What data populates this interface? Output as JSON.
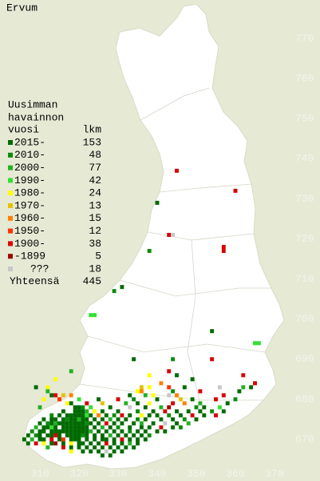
{
  "map": {
    "title": "Ervum",
    "legend": {
      "heading": [
        "Uusimman",
        "havainnon",
        "vuosi"
      ],
      "count_heading": "lkm",
      "items": [
        {
          "label": "2015-",
          "count": 153,
          "color": "#006a00"
        },
        {
          "label": "2010-",
          "count": 48,
          "color": "#0b8c0b"
        },
        {
          "label": "2000-",
          "count": 77,
          "color": "#22b022"
        },
        {
          "label": "1990-",
          "count": 42,
          "color": "#33e033"
        },
        {
          "label": "1980-",
          "count": 24,
          "color": "#ffff00"
        },
        {
          "label": "1970-",
          "count": 13,
          "color": "#e8c000"
        },
        {
          "label": "1960-",
          "count": 15,
          "color": "#ff8000"
        },
        {
          "label": "1950-",
          "count": 12,
          "color": "#ff3000"
        },
        {
          "label": "1900-",
          "count": 38,
          "color": "#d80000"
        },
        {
          "label": "-1899",
          "count": 5,
          "color": "#a00000"
        },
        {
          "label": "???",
          "count": 18,
          "color": "#c8c8c8"
        }
      ],
      "total_label": "Yhteensä",
      "total": 445
    },
    "xlim": [
      310,
      370
    ],
    "ylim": [
      670,
      770
    ],
    "xticks": [
      310,
      320,
      330,
      340,
      350,
      360,
      370
    ],
    "yticks": [
      670,
      680,
      690,
      700,
      710,
      720,
      730,
      740,
      750,
      760,
      770
    ],
    "squares": [
      [
        345,
        737,
        8
      ],
      [
        360,
        732,
        8
      ],
      [
        340,
        729,
        0
      ],
      [
        343,
        721,
        8
      ],
      [
        344,
        721,
        10
      ],
      [
        338,
        717,
        1
      ],
      [
        357,
        718,
        8
      ],
      [
        357,
        717,
        8
      ],
      [
        331,
        708,
        0
      ],
      [
        329,
        707,
        1
      ],
      [
        323,
        701,
        3
      ],
      [
        324,
        701,
        3
      ],
      [
        354,
        697,
        0
      ],
      [
        365,
        694,
        3
      ],
      [
        366,
        694,
        3
      ],
      [
        334,
        690,
        0
      ],
      [
        344,
        690,
        1
      ],
      [
        354,
        690,
        8
      ],
      [
        362,
        686,
        8
      ],
      [
        314,
        685,
        4
      ],
      [
        318,
        687,
        2
      ],
      [
        343,
        687,
        8
      ],
      [
        345,
        686,
        0
      ],
      [
        349,
        685,
        0
      ],
      [
        338,
        686,
        4
      ],
      [
        341,
        684,
        6
      ],
      [
        365,
        684,
        8
      ],
      [
        309,
        683,
        0
      ],
      [
        312,
        683,
        4
      ],
      [
        336,
        683,
        5
      ],
      [
        338,
        683,
        4
      ],
      [
        343,
        683,
        7
      ],
      [
        347,
        683,
        0
      ],
      [
        356,
        683,
        10
      ],
      [
        362,
        683,
        2
      ],
      [
        364,
        683,
        0
      ],
      [
        312,
        682,
        2
      ],
      [
        335,
        682,
        4
      ],
      [
        336,
        682,
        6
      ],
      [
        344,
        682,
        1
      ],
      [
        351,
        682,
        8
      ],
      [
        361,
        682,
        0
      ],
      [
        313,
        681,
        0
      ],
      [
        314,
        681,
        8
      ],
      [
        316,
        681,
        5
      ],
      [
        318,
        681,
        6
      ],
      [
        333,
        681,
        0
      ],
      [
        337,
        681,
        2
      ],
      [
        339,
        681,
        4
      ],
      [
        343,
        681,
        10
      ],
      [
        345,
        681,
        6
      ],
      [
        357,
        681,
        8
      ],
      [
        311,
        680,
        4
      ],
      [
        315,
        680,
        7
      ],
      [
        320,
        680,
        3
      ],
      [
        325,
        680,
        0
      ],
      [
        330,
        680,
        8
      ],
      [
        334,
        680,
        1
      ],
      [
        340,
        680,
        0
      ],
      [
        346,
        680,
        5
      ],
      [
        349,
        680,
        0
      ],
      [
        355,
        680,
        8
      ],
      [
        360,
        680,
        1
      ],
      [
        317,
        679,
        4
      ],
      [
        318,
        679,
        0
      ],
      [
        322,
        679,
        8
      ],
      [
        326,
        679,
        5
      ],
      [
        332,
        679,
        2
      ],
      [
        335,
        679,
        0
      ],
      [
        338,
        679,
        4
      ],
      [
        344,
        679,
        8
      ],
      [
        347,
        679,
        6
      ],
      [
        351,
        679,
        2
      ],
      [
        358,
        679,
        0
      ],
      [
        310,
        678,
        2
      ],
      [
        319,
        678,
        0
      ],
      [
        320,
        678,
        0
      ],
      [
        321,
        678,
        1
      ],
      [
        323,
        678,
        3
      ],
      [
        328,
        678,
        0
      ],
      [
        333,
        678,
        10
      ],
      [
        337,
        678,
        0
      ],
      [
        341,
        678,
        2
      ],
      [
        343,
        678,
        9
      ],
      [
        350,
        678,
        1
      ],
      [
        352,
        678,
        0
      ],
      [
        356,
        678,
        3
      ],
      [
        316,
        677,
        0
      ],
      [
        319,
        677,
        0
      ],
      [
        320,
        677,
        0
      ],
      [
        321,
        677,
        0
      ],
      [
        322,
        677,
        2
      ],
      [
        324,
        677,
        4
      ],
      [
        326,
        677,
        0
      ],
      [
        330,
        677,
        0
      ],
      [
        335,
        677,
        1
      ],
      [
        339,
        677,
        0
      ],
      [
        342,
        677,
        8
      ],
      [
        345,
        677,
        0
      ],
      [
        348,
        677,
        0
      ],
      [
        351,
        677,
        0
      ],
      [
        354,
        677,
        1
      ],
      [
        357,
        677,
        0
      ],
      [
        313,
        676,
        1
      ],
      [
        315,
        676,
        0
      ],
      [
        317,
        676,
        0
      ],
      [
        318,
        676,
        0
      ],
      [
        319,
        676,
        0
      ],
      [
        320,
        676,
        0
      ],
      [
        321,
        676,
        0
      ],
      [
        322,
        676,
        3
      ],
      [
        323,
        676,
        0
      ],
      [
        325,
        676,
        6
      ],
      [
        327,
        676,
        0
      ],
      [
        329,
        676,
        1
      ],
      [
        331,
        676,
        8
      ],
      [
        333,
        676,
        0
      ],
      [
        336,
        676,
        4
      ],
      [
        338,
        676,
        0
      ],
      [
        340,
        676,
        0
      ],
      [
        343,
        676,
        1
      ],
      [
        346,
        676,
        0
      ],
      [
        349,
        676,
        8
      ],
      [
        352,
        676,
        0
      ],
      [
        355,
        676,
        8
      ],
      [
        311,
        675,
        0
      ],
      [
        313,
        675,
        0
      ],
      [
        314,
        675,
        0
      ],
      [
        316,
        675,
        0
      ],
      [
        317,
        675,
        1
      ],
      [
        318,
        675,
        0
      ],
      [
        319,
        675,
        0
      ],
      [
        320,
        675,
        2
      ],
      [
        321,
        675,
        0
      ],
      [
        322,
        675,
        0
      ],
      [
        324,
        675,
        0
      ],
      [
        326,
        675,
        0
      ],
      [
        328,
        675,
        2
      ],
      [
        330,
        675,
        0
      ],
      [
        332,
        675,
        0
      ],
      [
        335,
        675,
        1
      ],
      [
        337,
        675,
        0
      ],
      [
        341,
        675,
        0
      ],
      [
        344,
        675,
        0
      ],
      [
        347,
        675,
        1
      ],
      [
        350,
        675,
        0
      ],
      [
        310,
        674,
        0
      ],
      [
        312,
        674,
        1
      ],
      [
        313,
        674,
        0
      ],
      [
        314,
        674,
        2
      ],
      [
        315,
        674,
        0
      ],
      [
        316,
        674,
        0
      ],
      [
        317,
        674,
        0
      ],
      [
        318,
        674,
        0
      ],
      [
        319,
        674,
        0
      ],
      [
        320,
        674,
        0
      ],
      [
        321,
        674,
        0
      ],
      [
        322,
        674,
        1
      ],
      [
        323,
        674,
        0
      ],
      [
        325,
        674,
        0
      ],
      [
        327,
        674,
        8
      ],
      [
        329,
        674,
        0
      ],
      [
        331,
        674,
        0
      ],
      [
        334,
        674,
        0
      ],
      [
        336,
        674,
        2
      ],
      [
        339,
        674,
        0
      ],
      [
        342,
        674,
        10
      ],
      [
        345,
        674,
        0
      ],
      [
        348,
        674,
        2
      ],
      [
        309,
        673,
        2
      ],
      [
        311,
        673,
        0
      ],
      [
        312,
        673,
        0
      ],
      [
        313,
        673,
        3
      ],
      [
        314,
        673,
        0
      ],
      [
        316,
        673,
        0
      ],
      [
        317,
        673,
        0
      ],
      [
        318,
        673,
        0
      ],
      [
        319,
        673,
        0
      ],
      [
        320,
        673,
        0
      ],
      [
        321,
        673,
        0
      ],
      [
        322,
        673,
        0
      ],
      [
        324,
        673,
        0
      ],
      [
        326,
        673,
        2
      ],
      [
        328,
        673,
        0
      ],
      [
        330,
        673,
        1
      ],
      [
        333,
        673,
        0
      ],
      [
        336,
        673,
        0
      ],
      [
        338,
        673,
        0
      ],
      [
        341,
        673,
        8
      ],
      [
        344,
        673,
        0
      ],
      [
        346,
        673,
        1
      ],
      [
        308,
        672,
        1
      ],
      [
        310,
        672,
        0
      ],
      [
        311,
        672,
        0
      ],
      [
        313,
        672,
        0
      ],
      [
        314,
        672,
        0
      ],
      [
        315,
        672,
        0
      ],
      [
        316,
        672,
        0
      ],
      [
        317,
        672,
        0
      ],
      [
        318,
        672,
        0
      ],
      [
        319,
        672,
        0
      ],
      [
        320,
        672,
        0
      ],
      [
        321,
        672,
        0
      ],
      [
        322,
        672,
        0
      ],
      [
        323,
        672,
        2
      ],
      [
        325,
        672,
        0
      ],
      [
        327,
        672,
        0
      ],
      [
        329,
        672,
        0
      ],
      [
        331,
        672,
        0
      ],
      [
        333,
        672,
        1
      ],
      [
        335,
        672,
        0
      ],
      [
        337,
        672,
        0
      ],
      [
        340,
        672,
        0
      ],
      [
        342,
        672,
        0
      ],
      [
        307,
        671,
        0
      ],
      [
        309,
        671,
        1
      ],
      [
        310,
        671,
        0
      ],
      [
        312,
        671,
        0
      ],
      [
        313,
        671,
        0
      ],
      [
        314,
        671,
        8
      ],
      [
        315,
        671,
        0
      ],
      [
        317,
        671,
        0
      ],
      [
        318,
        671,
        0
      ],
      [
        319,
        671,
        0
      ],
      [
        320,
        671,
        0
      ],
      [
        321,
        671,
        1
      ],
      [
        322,
        671,
        0
      ],
      [
        324,
        671,
        0
      ],
      [
        326,
        671,
        0
      ],
      [
        328,
        671,
        2
      ],
      [
        330,
        671,
        0
      ],
      [
        332,
        671,
        0
      ],
      [
        334,
        671,
        0
      ],
      [
        336,
        671,
        0
      ],
      [
        338,
        671,
        1
      ],
      [
        306,
        670,
        0
      ],
      [
        308,
        670,
        2
      ],
      [
        310,
        670,
        0
      ],
      [
        311,
        670,
        0
      ],
      [
        313,
        670,
        8
      ],
      [
        315,
        670,
        0
      ],
      [
        316,
        670,
        7
      ],
      [
        318,
        670,
        0
      ],
      [
        319,
        670,
        0
      ],
      [
        320,
        670,
        0
      ],
      [
        322,
        670,
        0
      ],
      [
        324,
        670,
        0
      ],
      [
        326,
        670,
        0
      ],
      [
        327,
        670,
        0
      ],
      [
        329,
        670,
        0
      ],
      [
        331,
        670,
        8
      ],
      [
        333,
        670,
        0
      ],
      [
        335,
        670,
        0
      ],
      [
        337,
        670,
        0
      ],
      [
        307,
        669,
        0
      ],
      [
        309,
        669,
        8
      ],
      [
        311,
        669,
        4
      ],
      [
        313,
        669,
        0
      ],
      [
        314,
        669,
        9
      ],
      [
        316,
        669,
        0
      ],
      [
        318,
        669,
        4
      ],
      [
        320,
        669,
        0
      ],
      [
        321,
        669,
        0
      ],
      [
        323,
        669,
        0
      ],
      [
        325,
        669,
        0
      ],
      [
        327,
        669,
        8
      ],
      [
        329,
        669,
        0
      ],
      [
        331,
        669,
        0
      ],
      [
        333,
        669,
        2
      ],
      [
        335,
        669,
        0
      ],
      [
        312,
        668,
        2
      ],
      [
        316,
        668,
        8
      ],
      [
        318,
        668,
        0
      ],
      [
        320,
        668,
        0
      ],
      [
        322,
        668,
        0
      ],
      [
        324,
        668,
        0
      ],
      [
        326,
        668,
        0
      ],
      [
        328,
        668,
        0
      ],
      [
        330,
        668,
        0
      ],
      [
        332,
        668,
        0
      ],
      [
        334,
        668,
        0
      ],
      [
        318,
        667,
        4
      ],
      [
        321,
        667,
        0
      ],
      [
        323,
        667,
        0
      ],
      [
        325,
        667,
        0
      ],
      [
        327,
        667,
        10
      ],
      [
        329,
        667,
        0
      ],
      [
        331,
        667,
        0
      ],
      [
        326,
        666,
        0
      ],
      [
        328,
        666,
        0
      ]
    ]
  }
}
